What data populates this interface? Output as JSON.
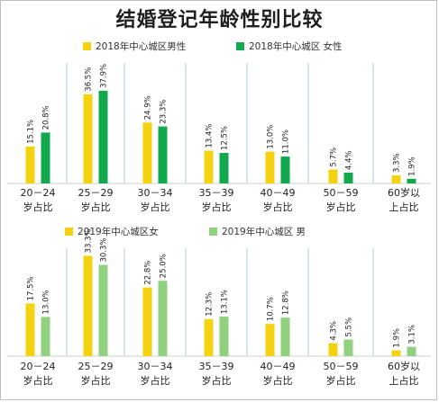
{
  "title": "结婚登记年龄性别比较",
  "colors": {
    "yellow": "#f5d20f",
    "green_dark": "#12a84e",
    "green_light": "#8fd17f",
    "divider": "#b9d1ea",
    "baseline": "#cfcfcf"
  },
  "chart_data": [
    {
      "type": "bar",
      "categories": [
        [
          "20－24",
          "岁占比"
        ],
        [
          "25－29",
          "岁占比"
        ],
        [
          "30－34",
          "岁占比"
        ],
        [
          "35－39",
          "岁占比"
        ],
        [
          "40－49",
          "岁占比"
        ],
        [
          "50－59",
          "岁占比"
        ],
        [
          "60岁以",
          "上占比"
        ]
      ],
      "legend_position": "top",
      "series": [
        {
          "name": "2018年中心城区男性",
          "color": "#f5d20f",
          "values": [
            15.1,
            36.5,
            24.9,
            13.4,
            13.0,
            5.7,
            3.3
          ],
          "labels": [
            "15.1%",
            "36.5%",
            "24.9%",
            "13.4%",
            "13.0%",
            "5.7%",
            "3.3%"
          ]
        },
        {
          "name": "2018年中心城区 女性",
          "color": "#12a84e",
          "values": [
            20.8,
            37.9,
            23.3,
            12.5,
            11.0,
            4.4,
            1.9
          ],
          "labels": [
            "20.8%",
            "37.9%",
            "23.3%",
            "12.5%",
            "11.0%",
            "4.4%",
            "1.9%"
          ]
        }
      ],
      "ylim": [
        0,
        40
      ]
    },
    {
      "type": "bar",
      "categories": [
        [
          "20－24",
          "岁占比"
        ],
        [
          "25－29",
          "岁占比"
        ],
        [
          "30－34",
          "岁占比"
        ],
        [
          "35－39",
          "岁占比"
        ],
        [
          "40－49",
          "岁占比"
        ],
        [
          "50－59",
          "岁占比"
        ],
        [
          "60岁以",
          "上占比"
        ]
      ],
      "legend_position": "top",
      "series": [
        {
          "name": "2019年中心城区女",
          "color": "#f5d20f",
          "values": [
            17.5,
            33.3,
            22.8,
            12.3,
            10.7,
            4.3,
            1.9
          ],
          "labels": [
            "17.5%",
            "33.3%",
            "22.8%",
            "12.3%",
            "10.7%",
            "4.3%",
            "1.9%"
          ]
        },
        {
          "name": "2019年中心城区 男",
          "color": "#8fd17f",
          "values": [
            13.0,
            30.3,
            25.0,
            13.1,
            12.8,
            5.5,
            3.1
          ],
          "labels": [
            "13.0%",
            "30.3%",
            "25.0%",
            "13.1%",
            "12.8%",
            "5.5%",
            "3.1%"
          ]
        }
      ],
      "ylim": [
        0,
        35
      ]
    }
  ]
}
